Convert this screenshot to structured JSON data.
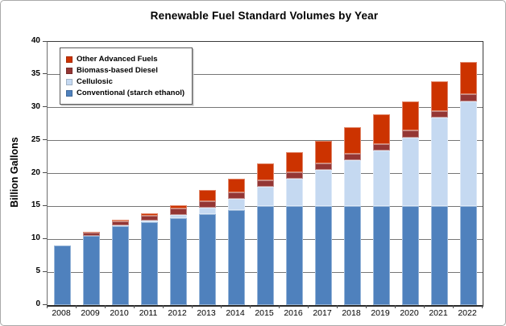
{
  "chart": {
    "title": "Renewable Fuel Standard Volumes by Year",
    "y_axis_title": "Billion Gallons"
  },
  "chart_data": {
    "type": "bar",
    "stacked": true,
    "title": "Renewable Fuel Standard Volumes by Year",
    "xlabel": "",
    "ylabel": "Billion Gallons",
    "ylim": [
      0,
      40
    ],
    "ytick_step": 5,
    "ytick_labels": [
      "0",
      "5",
      "10",
      "15",
      "20",
      "25",
      "30",
      "35",
      "40"
    ],
    "grid": true,
    "legend_position": "top-left",
    "legend_order": [
      "Other Advanced Fuels",
      "Biomass-based Diesel",
      "Cellulosic",
      "Conventional (starch ethanol)"
    ],
    "categories": [
      "2008",
      "2009",
      "2010",
      "2011",
      "2012",
      "2013",
      "2014",
      "2015",
      "2016",
      "2017",
      "2018",
      "2019",
      "2020",
      "2021",
      "2022"
    ],
    "series": [
      {
        "name": "Conventional (starch ethanol)",
        "color": "#4F81BD",
        "values": [
          9.0,
          10.5,
          12.0,
          12.6,
          13.2,
          13.8,
          14.4,
          15.0,
          15.0,
          15.0,
          15.0,
          15.0,
          15.0,
          15.0,
          15.0
        ]
      },
      {
        "name": "Cellulosic",
        "color": "#C5D9F1",
        "values": [
          0,
          0,
          0.1,
          0.25,
          0.5,
          1.0,
          1.75,
          3.0,
          4.25,
          5.5,
          7.0,
          8.5,
          10.5,
          13.5,
          16.0
        ]
      },
      {
        "name": "Biomass-based Diesel",
        "color": "#943634",
        "values": [
          0,
          0.5,
          0.65,
          0.8,
          1.0,
          1.0,
          1.0,
          1.0,
          1.0,
          1.0,
          1.0,
          1.0,
          1.0,
          1.0,
          1.0
        ]
      },
      {
        "name": "Other Advanced Fuels",
        "color": "#CC3300",
        "values": [
          0,
          0.1,
          0.2,
          0.3,
          0.5,
          1.75,
          2.0,
          2.5,
          3.0,
          3.5,
          4.0,
          4.5,
          4.5,
          4.5,
          5.0
        ]
      }
    ],
    "bar_totals": [
      9.0,
      11.1,
      12.95,
      13.95,
      15.2,
      17.55,
      19.15,
      21.5,
      23.25,
      25.0,
      27.0,
      29.0,
      31.0,
      34.0,
      37.0
    ]
  }
}
